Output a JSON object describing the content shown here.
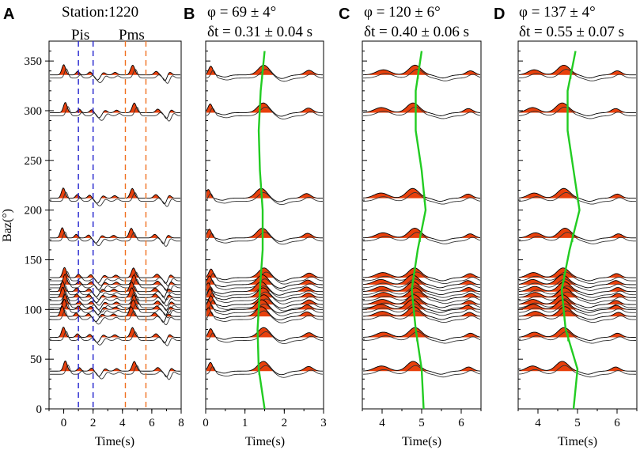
{
  "chart_data": [
    {
      "type": "line",
      "label": "A",
      "title": "Station:1220",
      "xlabel": "Time(s)",
      "ylabel": "Baz(°)",
      "xlim": [
        -1,
        8
      ],
      "xticks": [
        0,
        2,
        4,
        6,
        8
      ],
      "ylim": [
        0,
        370
      ],
      "yticks": [
        0,
        50,
        100,
        150,
        200,
        250,
        300,
        350
      ],
      "phases": [
        {
          "name": "Pis",
          "lines": [
            1.0,
            2.0
          ],
          "color": "#1f1fcc",
          "label_x": 1.5
        },
        {
          "name": "Pms",
          "lines": [
            4.2,
            5.6
          ],
          "color": "#f07020",
          "label_x": 4.9
        }
      ],
      "pulses": [
        [
          0,
          1.0,
          0.18
        ],
        [
          0.95,
          0.35,
          0.16
        ],
        [
          1.8,
          0.3,
          0.18
        ],
        [
          2.7,
          0.25,
          0.2
        ],
        [
          3.5,
          0.25,
          0.2
        ],
        [
          4.7,
          0.95,
          0.2
        ],
        [
          6.3,
          0.35,
          0.2
        ],
        [
          7.2,
          0.3,
          0.2
        ],
        [
          2.3,
          -0.5,
          0.25
        ],
        [
          6.9,
          -0.6,
          0.2
        ]
      ]
    },
    {
      "type": "line",
      "label": "B",
      "title_phi": "φ = 69 ± 4°",
      "title_dt": "δt = 0.31 ± 0.04 s",
      "xlabel": "Time(s)",
      "xlim": [
        0,
        3
      ],
      "xticks": [
        0,
        1,
        2,
        3
      ],
      "ylim": [
        0,
        370
      ],
      "pulses": [
        [
          0.1,
          0.85,
          0.08
        ],
        [
          1.45,
          0.95,
          0.2
        ],
        [
          2.6,
          0.45,
          0.15
        ],
        [
          1.9,
          -0.35,
          0.2
        ],
        [
          0.45,
          -0.2,
          0.15
        ]
      ],
      "green_curve": {
        "baz": [
          360,
          320,
          280,
          240,
          200,
          160,
          120,
          80,
          40,
          0
        ],
        "time": [
          1.5,
          1.4,
          1.35,
          1.38,
          1.45,
          1.45,
          1.38,
          1.32,
          1.35,
          1.5
        ]
      }
    },
    {
      "type": "line",
      "label": "C",
      "title_phi": "φ = 120 ± 6°",
      "title_dt": "δt = 0.40 ± 0.06 s",
      "xlabel": "Time(s)",
      "xlim": [
        3.5,
        6.5
      ],
      "xticks": [
        4,
        5,
        6
      ],
      "ylim": [
        0,
        370
      ],
      "pulses": [
        [
          4.0,
          0.5,
          0.25
        ],
        [
          4.8,
          0.95,
          0.22
        ],
        [
          6.2,
          0.4,
          0.15
        ],
        [
          5.5,
          -0.3,
          0.2
        ]
      ],
      "green_curve": {
        "baz": [
          360,
          320,
          280,
          240,
          200,
          160,
          120,
          80,
          40,
          0
        ],
        "time": [
          5.0,
          4.85,
          4.85,
          5.0,
          5.1,
          4.9,
          4.75,
          4.85,
          5.0,
          5.05
        ]
      }
    },
    {
      "type": "line",
      "label": "D",
      "title_phi": "φ = 137 ± 4°",
      "title_dt": "δt = 0.55 ± 0.07 s",
      "xlabel": "Time(s)",
      "xlim": [
        3.5,
        6.5
      ],
      "xticks": [
        4,
        5,
        6
      ],
      "ylim": [
        0,
        370
      ],
      "pulses": [
        [
          3.9,
          0.5,
          0.22
        ],
        [
          4.65,
          0.95,
          0.22
        ],
        [
          6.0,
          0.4,
          0.15
        ],
        [
          5.3,
          -0.3,
          0.2
        ]
      ],
      "green_curve": {
        "baz": [
          360,
          320,
          280,
          240,
          200,
          160,
          120,
          80,
          40,
          0
        ],
        "time": [
          4.95,
          4.75,
          4.75,
          4.9,
          5.05,
          4.8,
          4.6,
          4.7,
          5.0,
          4.9
        ]
      }
    }
  ],
  "traces_baz": [
    336,
    298,
    212,
    172,
    132,
    125,
    118,
    112,
    105,
    100,
    93,
    72,
    38
  ]
}
